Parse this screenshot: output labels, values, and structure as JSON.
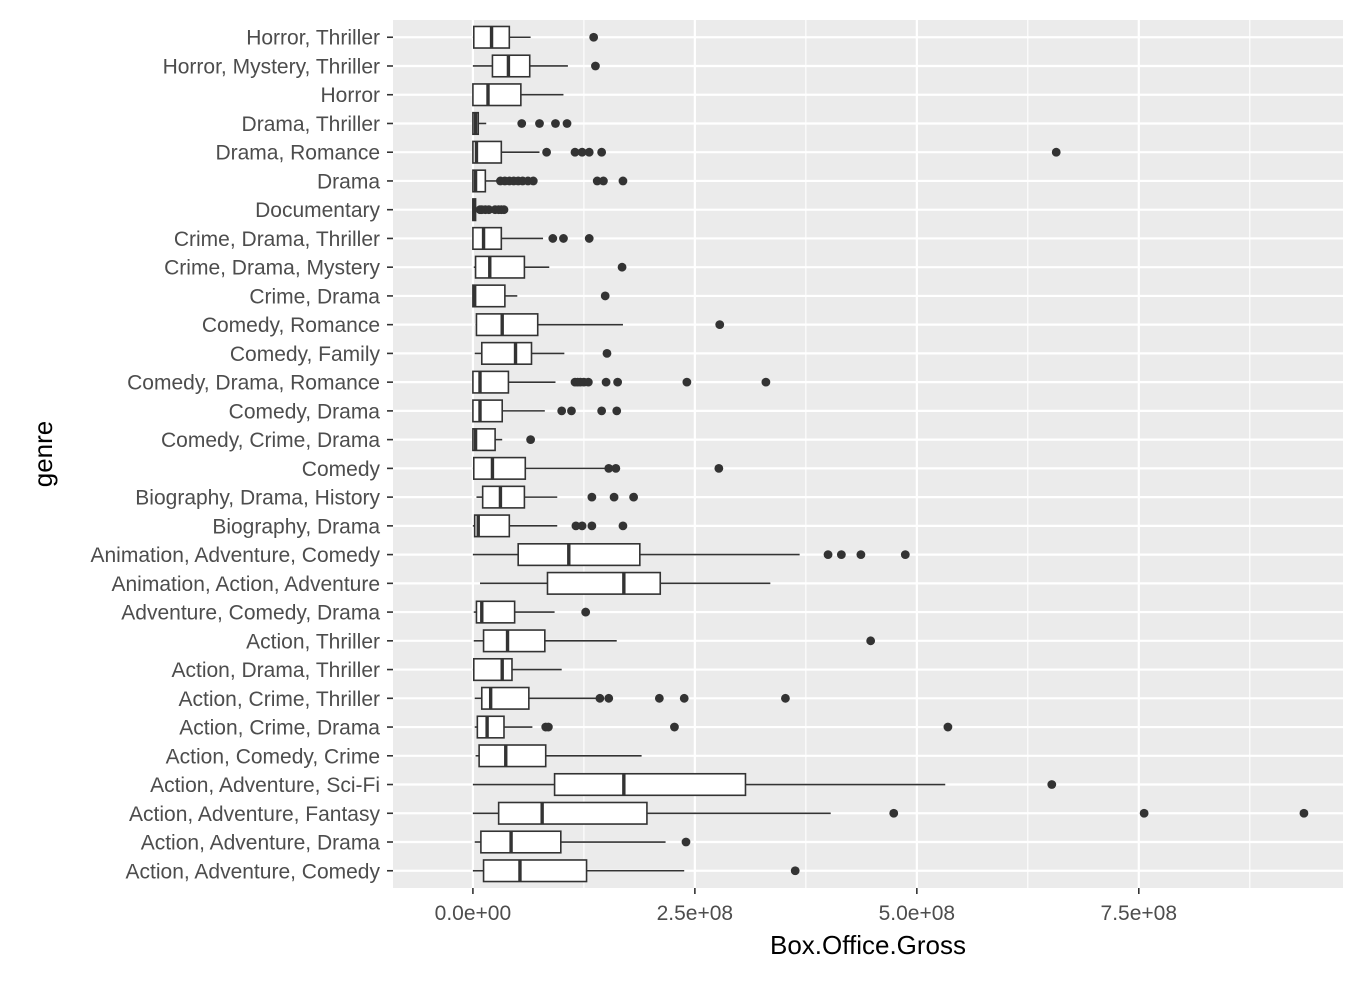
{
  "chart_data": {
    "type": "boxplot",
    "orientation": "horizontal",
    "xlabel": "Box.Office.Gross",
    "ylabel": "genre",
    "xlim": [
      -90000000,
      980000000
    ],
    "xticks": [
      {
        "value": 0,
        "label": "0.0e+00"
      },
      {
        "value": 250000000,
        "label": "2.5e+08"
      },
      {
        "value": 500000000,
        "label": "5.0e+08"
      },
      {
        "value": 750000000,
        "label": "7.5e+08"
      }
    ],
    "grid": true,
    "colors": {
      "panel": "#ebebeb",
      "grid": "#ffffff",
      "box_fill": "#ffffff",
      "box_stroke": "#333333",
      "outlier": "#333333"
    },
    "categories": [
      "Action, Adventure, Comedy",
      "Action, Adventure, Drama",
      "Action, Adventure, Fantasy",
      "Action, Adventure, Sci-Fi",
      "Action, Comedy, Crime",
      "Action, Crime, Drama",
      "Action, Crime, Thriller",
      "Action, Drama, Thriller",
      "Action, Thriller",
      "Adventure, Comedy, Drama",
      "Animation, Action, Adventure",
      "Animation, Adventure, Comedy",
      "Biography, Drama",
      "Biography, Drama, History",
      "Comedy",
      "Comedy, Crime, Drama",
      "Comedy, Drama",
      "Comedy, Drama, Romance",
      "Comedy, Family",
      "Comedy, Romance",
      "Crime, Drama",
      "Crime, Drama, Mystery",
      "Crime, Drama, Thriller",
      "Documentary",
      "Drama",
      "Drama, Romance",
      "Drama, Thriller",
      "Horror",
      "Horror, Mystery, Thriller",
      "Horror, Thriller"
    ],
    "boxes": [
      {
        "min": 0,
        "q1": 12000000,
        "median": 53000000,
        "q3": 128000000,
        "max": 238000000,
        "outliers": [
          363000000
        ]
      },
      {
        "min": 2000000,
        "q1": 9000000,
        "median": 43000000,
        "q3": 99000000,
        "max": 217000000,
        "outliers": [
          240000000
        ]
      },
      {
        "min": 0,
        "q1": 29000000,
        "median": 78000000,
        "q3": 196000000,
        "max": 403000000,
        "outliers": [
          474000000,
          756000000,
          936000000
        ]
      },
      {
        "min": 0,
        "q1": 92000000,
        "median": 170000000,
        "q3": 307000000,
        "max": 532000000,
        "outliers": [
          652000000
        ]
      },
      {
        "min": 3000000,
        "q1": 7000000,
        "median": 37000000,
        "q3": 82000000,
        "max": 190000000,
        "outliers": []
      },
      {
        "min": 2000000,
        "q1": 5000000,
        "median": 16000000,
        "q3": 35000000,
        "max": 67000000,
        "outliers": [
          82000000,
          85000000,
          227000000,
          535000000
        ]
      },
      {
        "min": 2000000,
        "q1": 10000000,
        "median": 20000000,
        "q3": 63000000,
        "max": 140000000,
        "outliers": [
          143000000,
          153000000,
          210000000,
          238000000,
          352000000
        ]
      },
      {
        "min": 0,
        "q1": 1000000,
        "median": 33000000,
        "q3": 44000000,
        "max": 100000000,
        "outliers": []
      },
      {
        "min": 1000000,
        "q1": 12000000,
        "median": 39000000,
        "q3": 81000000,
        "max": 162000000,
        "outliers": [
          448000000
        ]
      },
      {
        "min": 1000000,
        "q1": 4000000,
        "median": 10000000,
        "q3": 47000000,
        "max": 92000000,
        "outliers": [
          127000000
        ]
      },
      {
        "min": 8000000,
        "q1": 84000000,
        "median": 170000000,
        "q3": 211000000,
        "max": 335000000,
        "outliers": []
      },
      {
        "min": 0,
        "q1": 51000000,
        "median": 108000000,
        "q3": 188000000,
        "max": 368000000,
        "outliers": [
          400000000,
          415000000,
          437000000,
          487000000
        ]
      },
      {
        "min": 0,
        "q1": 2000000,
        "median": 6000000,
        "q3": 41000000,
        "max": 95000000,
        "outliers": [
          116000000,
          123000000,
          134000000,
          169000000
        ]
      },
      {
        "min": 4000000,
        "q1": 11000000,
        "median": 31000000,
        "q3": 58000000,
        "max": 95000000,
        "outliers": [
          134000000,
          159000000,
          181000000
        ]
      },
      {
        "min": 0,
        "q1": 1000000,
        "median": 22000000,
        "q3": 59000000,
        "max": 150000000,
        "outliers": [
          153000000,
          161000000,
          277000000
        ]
      },
      {
        "min": 0,
        "q1": 0,
        "median": 3000000,
        "q3": 25000000,
        "max": 33000000,
        "outliers": [
          65000000
        ]
      },
      {
        "min": 0,
        "q1": 0,
        "median": 8000000,
        "q3": 33000000,
        "max": 81000000,
        "outliers": [
          100000000,
          111000000,
          145000000,
          162000000
        ]
      },
      {
        "min": 0,
        "q1": 0,
        "median": 8000000,
        "q3": 40000000,
        "max": 93000000,
        "outliers": [
          115000000,
          118000000,
          121000000,
          125000000,
          130000000,
          150000000,
          163000000,
          241000000,
          330000000
        ]
      },
      {
        "min": 2000000,
        "q1": 10000000,
        "median": 48000000,
        "q3": 66000000,
        "max": 103000000,
        "outliers": [
          151000000
        ]
      },
      {
        "min": 3000000,
        "q1": 4000000,
        "median": 33000000,
        "q3": 73000000,
        "max": 169000000,
        "outliers": [
          278000000
        ]
      },
      {
        "min": 0,
        "q1": 0,
        "median": 2000000,
        "q3": 36000000,
        "max": 50000000,
        "outliers": [
          149000000
        ]
      },
      {
        "min": 1000000,
        "q1": 3000000,
        "median": 19000000,
        "q3": 58000000,
        "max": 86000000,
        "outliers": [
          168000000
        ]
      },
      {
        "min": 0,
        "q1": 0,
        "median": 12000000,
        "q3": 32000000,
        "max": 79000000,
        "outliers": [
          90000000,
          102000000,
          131000000
        ]
      },
      {
        "min": 0,
        "q1": 0,
        "median": 1000000,
        "q3": 3000000,
        "max": 6000000,
        "outliers": [
          8000000,
          10000000,
          14000000,
          18000000,
          25000000,
          29000000,
          32000000,
          35000000
        ]
      },
      {
        "min": 0,
        "q1": 0,
        "median": 3000000,
        "q3": 14000000,
        "max": 27000000,
        "outliers": [
          31000000,
          36000000,
          41000000,
          46000000,
          51000000,
          56000000,
          62000000,
          68000000,
          140000000,
          147000000,
          169000000
        ]
      },
      {
        "min": 0,
        "q1": 0,
        "median": 4000000,
        "q3": 32000000,
        "max": 75000000,
        "outliers": [
          83000000,
          115000000,
          123000000,
          131000000,
          145000000,
          657000000
        ]
      },
      {
        "min": 0,
        "q1": 0,
        "median": 3000000,
        "q3": 6000000,
        "max": 15000000,
        "outliers": [
          55000000,
          75000000,
          93000000,
          106000000
        ]
      },
      {
        "min": 0,
        "q1": 0,
        "median": 17000000,
        "q3": 54000000,
        "max": 102000000,
        "outliers": []
      },
      {
        "min": 0,
        "q1": 22000000,
        "median": 40000000,
        "q3": 64000000,
        "max": 107000000,
        "outliers": [
          138000000
        ]
      },
      {
        "min": 0,
        "q1": 1000000,
        "median": 21000000,
        "q3": 41000000,
        "max": 65000000,
        "outliers": [
          136000000
        ]
      }
    ]
  }
}
